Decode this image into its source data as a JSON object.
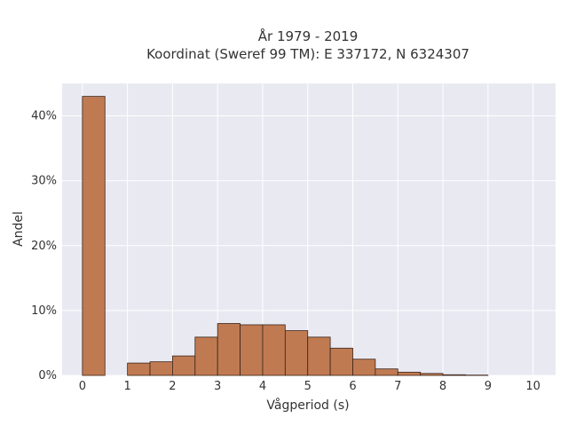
{
  "chart_data": {
    "type": "bar",
    "title_line1": "År 1979 - 2019",
    "title_line2": "Koordinat (Sweref 99 TM): E 337172, N 6324307",
    "xlabel": "Vågperiod (s)",
    "ylabel": "Andel",
    "xlim": [
      -0.45,
      10.5
    ],
    "ylim": [
      0,
      0.45
    ],
    "x_ticks": [
      0,
      1,
      2,
      3,
      4,
      5,
      6,
      7,
      8,
      9,
      10
    ],
    "x_tick_labels": [
      "0",
      "1",
      "2",
      "3",
      "4",
      "5",
      "6",
      "7",
      "8",
      "9",
      "10"
    ],
    "y_ticks": [
      0,
      0.1,
      0.2,
      0.3,
      0.4
    ],
    "y_tick_labels": [
      "0%",
      "10%",
      "20%",
      "30%",
      "40%"
    ],
    "bin_width": 0.5,
    "bins": [
      {
        "x0": 0.0,
        "value": 0.43
      },
      {
        "x0": 1.0,
        "value": 0.019
      },
      {
        "x0": 1.5,
        "value": 0.021
      },
      {
        "x0": 2.0,
        "value": 0.03
      },
      {
        "x0": 2.5,
        "value": 0.059
      },
      {
        "x0": 3.0,
        "value": 0.08
      },
      {
        "x0": 3.5,
        "value": 0.078
      },
      {
        "x0": 4.0,
        "value": 0.078
      },
      {
        "x0": 4.5,
        "value": 0.069
      },
      {
        "x0": 5.0,
        "value": 0.059
      },
      {
        "x0": 5.5,
        "value": 0.042
      },
      {
        "x0": 6.0,
        "value": 0.025
      },
      {
        "x0": 6.5,
        "value": 0.01
      },
      {
        "x0": 7.0,
        "value": 0.005
      },
      {
        "x0": 7.5,
        "value": 0.003
      },
      {
        "x0": 8.0,
        "value": 0.001
      },
      {
        "x0": 8.5,
        "value": 0.0005
      }
    ],
    "grid": true,
    "colors": {
      "bar_fill": "#c07a52",
      "bar_stroke": "#3a2418",
      "plot_bg": "#e9e9f2",
      "grid": "#ffffff"
    }
  }
}
